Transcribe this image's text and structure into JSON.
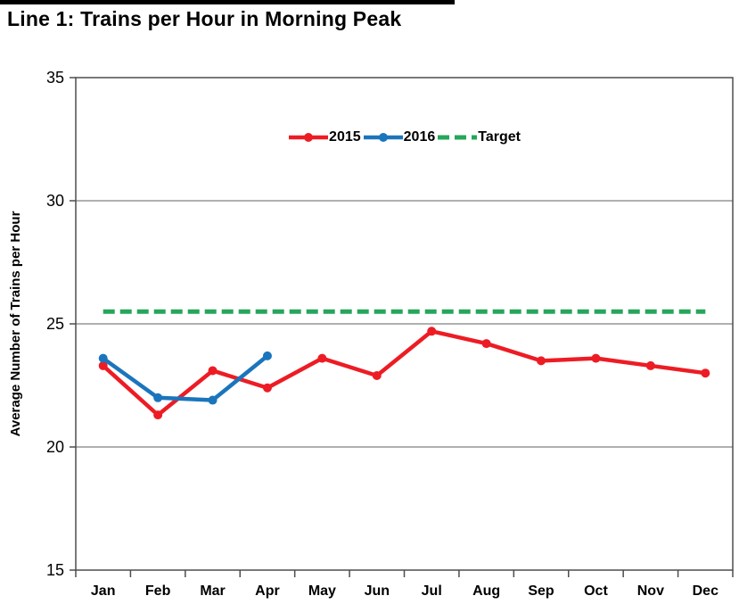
{
  "title": "Line 1: Trains per Hour in Morning Peak",
  "chart_data": {
    "type": "line",
    "title": "Line 1: Trains per Hour in Morning Peak",
    "xlabel": "",
    "ylabel": "Average Number of Trains per Hour",
    "categories": [
      "Jan",
      "Feb",
      "Mar",
      "Apr",
      "May",
      "Jun",
      "Jul",
      "Aug",
      "Sep",
      "Oct",
      "Nov",
      "Dec"
    ],
    "series": [
      {
        "name": "2015",
        "color": "#ED1C24",
        "style": "solid",
        "marker": "circle",
        "values": [
          23.3,
          21.3,
          23.1,
          22.4,
          23.6,
          22.9,
          24.7,
          24.2,
          23.5,
          23.6,
          23.3,
          23.0
        ]
      },
      {
        "name": "2016",
        "color": "#1B75BC",
        "style": "solid",
        "marker": "circle",
        "values": [
          23.6,
          22.0,
          21.9,
          23.7
        ]
      },
      {
        "name": "Target",
        "color": "#26A65B",
        "style": "dashed",
        "marker": "none",
        "values": [
          25.5,
          25.5,
          25.5,
          25.5,
          25.5,
          25.5,
          25.5,
          25.5,
          25.5,
          25.5,
          25.5,
          25.5
        ]
      }
    ],
    "ylim": [
      15,
      35
    ],
    "ytick_step": 5,
    "yticks": [
      15,
      20,
      25,
      30,
      35
    ],
    "grid": "horizontal-only",
    "legend_position": "top-center-inside"
  },
  "colors": {
    "series_2015": "#ED1C24",
    "series_2016": "#1B75BC",
    "target": "#26A65B",
    "gridline": "#808080",
    "plot_border": "#4d4d4d",
    "text": "#000000",
    "background": "#ffffff"
  }
}
